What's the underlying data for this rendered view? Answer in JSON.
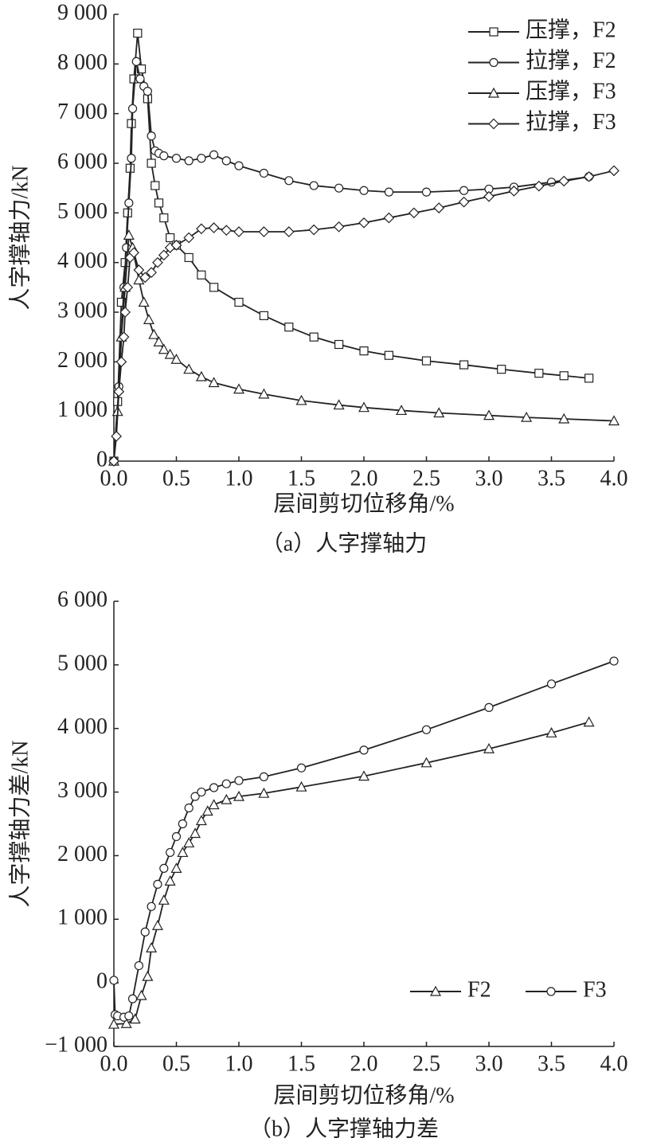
{
  "chart_data": [
    {
      "type": "line",
      "caption": "（a）人字撑轴力",
      "x_label": "层间剪切位移角/%",
      "y_label": "人字撑轴力/kN",
      "xlim": [
        0,
        4
      ],
      "ylim": [
        0,
        9000
      ],
      "xticks": [
        {
          "value": 0,
          "label": "0.0"
        },
        0.5,
        {
          "value": 1,
          "label": "1.0"
        },
        1.5,
        {
          "value": 2,
          "label": "2.0"
        },
        2.5,
        {
          "value": 3,
          "label": "3.0"
        },
        3.5,
        {
          "value": 4,
          "label": "4.0"
        }
      ],
      "yticks": [
        0,
        {
          "value": 1000,
          "label": "1 000"
        },
        {
          "value": 2000,
          "label": "2 000"
        },
        {
          "value": 3000,
          "label": "3 000"
        },
        {
          "value": 4000,
          "label": "4 000"
        },
        {
          "value": 5000,
          "label": "5 000"
        },
        {
          "value": 6000,
          "label": "6 000"
        },
        {
          "value": 7000,
          "label": "7 000"
        },
        {
          "value": 8000,
          "label": "8 000"
        },
        {
          "value": 9000,
          "label": "9 000"
        }
      ],
      "grid": false,
      "legend": "upper right",
      "legend_columns": 1,
      "series": [
        {
          "name": "压撑，F2",
          "color": "#222222",
          "marker": "square",
          "x": [
            0,
            0.03,
            0.06,
            0.09,
            0.11,
            0.13,
            0.14,
            0.16,
            0.19,
            0.22,
            0.27,
            0.3,
            0.33,
            0.36,
            0.4,
            0.45,
            0.5,
            0.6,
            0.7,
            0.8,
            1.0,
            1.2,
            1.4,
            1.6,
            1.8,
            2.0,
            2.2,
            2.5,
            2.8,
            3.1,
            3.4,
            3.6,
            3.8
          ],
          "values": [
            0,
            1200,
            3200,
            4000,
            5000,
            5900,
            6800,
            7700,
            8620,
            7900,
            7300,
            6000,
            5550,
            5200,
            4900,
            4500,
            4350,
            4100,
            3750,
            3500,
            3200,
            2930,
            2700,
            2500,
            2350,
            2220,
            2130,
            2020,
            1940,
            1850,
            1770,
            1720,
            1670
          ]
        },
        {
          "name": "拉撑，F2",
          "color": "#222222",
          "marker": "circle",
          "x": [
            0,
            0.04,
            0.08,
            0.1,
            0.12,
            0.14,
            0.15,
            0.18,
            0.21,
            0.24,
            0.27,
            0.3,
            0.33,
            0.36,
            0.4,
            0.5,
            0.6,
            0.7,
            0.8,
            0.9,
            1.0,
            1.2,
            1.4,
            1.6,
            1.8,
            2.0,
            2.2,
            2.5,
            2.8,
            3.0,
            3.2,
            3.5,
            3.8
          ],
          "values": [
            0,
            1500,
            3500,
            4300,
            5200,
            6100,
            7100,
            8050,
            7700,
            7550,
            7450,
            6550,
            6250,
            6200,
            6150,
            6100,
            6050,
            6100,
            6170,
            6050,
            5950,
            5800,
            5650,
            5550,
            5500,
            5450,
            5420,
            5420,
            5450,
            5480,
            5520,
            5620,
            5730
          ]
        },
        {
          "name": "压撑，F3",
          "color": "#222222",
          "marker": "triangle",
          "x": [
            0,
            0.03,
            0.06,
            0.09,
            0.12,
            0.15,
            0.2,
            0.24,
            0.28,
            0.32,
            0.36,
            0.4,
            0.45,
            0.5,
            0.6,
            0.7,
            0.8,
            1.0,
            1.2,
            1.5,
            1.8,
            2.0,
            2.3,
            2.6,
            3.0,
            3.3,
            3.6,
            4.0
          ],
          "values": [
            0,
            1000,
            2500,
            3500,
            4550,
            4300,
            3650,
            3200,
            2850,
            2550,
            2400,
            2250,
            2150,
            2050,
            1850,
            1700,
            1580,
            1450,
            1350,
            1220,
            1130,
            1080,
            1020,
            970,
            920,
            880,
            850,
            810
          ]
        },
        {
          "name": "拉撑，F3",
          "color": "#222222",
          "marker": "diamond",
          "x": [
            0,
            0.02,
            0.04,
            0.06,
            0.08,
            0.09,
            0.11,
            0.13,
            0.16,
            0.2,
            0.25,
            0.3,
            0.35,
            0.4,
            0.45,
            0.5,
            0.6,
            0.7,
            0.8,
            0.9,
            1.0,
            1.2,
            1.4,
            1.6,
            1.8,
            2.0,
            2.2,
            2.4,
            2.6,
            2.8,
            3.0,
            3.2,
            3.4,
            3.6,
            3.8,
            4.0
          ],
          "values": [
            0,
            500,
            1400,
            2000,
            2500,
            3000,
            3500,
            4100,
            4200,
            3850,
            3700,
            3800,
            4000,
            4150,
            4300,
            4350,
            4500,
            4680,
            4700,
            4650,
            4620,
            4620,
            4620,
            4660,
            4720,
            4800,
            4900,
            5000,
            5100,
            5220,
            5330,
            5440,
            5540,
            5640,
            5730,
            5850
          ]
        }
      ]
    },
    {
      "type": "line",
      "caption": "（b）人字撑轴力差",
      "x_label": "层间剪切位移角/%",
      "y_label": "人字撑轴力差/kN",
      "xlim": [
        0,
        4
      ],
      "ylim": [
        -1000,
        6000
      ],
      "xticks": [
        {
          "value": 0,
          "label": "0.0"
        },
        0.5,
        {
          "value": 1,
          "label": "1.0"
        },
        1.5,
        {
          "value": 2,
          "label": "2.0"
        },
        2.5,
        {
          "value": 3,
          "label": "3.0"
        },
        3.5,
        {
          "value": 4,
          "label": "4.0"
        }
      ],
      "yticks": [
        {
          "value": -1000,
          "label": "−1 000"
        },
        0,
        {
          "value": 1000,
          "label": "1 000"
        },
        {
          "value": 2000,
          "label": "2 000"
        },
        {
          "value": 3000,
          "label": "3 000"
        },
        {
          "value": 4000,
          "label": "4 000"
        },
        {
          "value": 5000,
          "label": "5 000"
        },
        {
          "value": 6000,
          "label": "6 000"
        }
      ],
      "grid": false,
      "legend": "lower right",
      "legend_columns": 2,
      "series": [
        {
          "name": "F2",
          "color": "#222222",
          "marker": "triangle",
          "x": [
            0,
            0.1,
            0.17,
            0.22,
            0.27,
            0.3,
            0.35,
            0.4,
            0.45,
            0.5,
            0.55,
            0.6,
            0.65,
            0.7,
            0.75,
            0.8,
            0.9,
            1.0,
            1.2,
            1.5,
            2.0,
            2.5,
            3.0,
            3.5,
            3.8
          ],
          "values": [
            -650,
            -640,
            -570,
            -200,
            100,
            550,
            900,
            1300,
            1600,
            1800,
            2050,
            2200,
            2350,
            2550,
            2700,
            2800,
            2880,
            2930,
            2980,
            3080,
            3250,
            3460,
            3680,
            3930,
            4100
          ]
        },
        {
          "name": "F3",
          "color": "#222222",
          "marker": "circle",
          "x": [
            0,
            0.01,
            0.03,
            0.08,
            0.12,
            0.15,
            0.2,
            0.25,
            0.3,
            0.35,
            0.4,
            0.45,
            0.5,
            0.55,
            0.6,
            0.65,
            0.7,
            0.8,
            0.9,
            1.0,
            1.2,
            1.5,
            2.0,
            2.5,
            3.0,
            3.5,
            4.0
          ],
          "values": [
            40,
            -500,
            -520,
            -540,
            -520,
            -250,
            270,
            800,
            1200,
            1550,
            1800,
            2050,
            2300,
            2500,
            2750,
            2930,
            3000,
            3070,
            3130,
            3180,
            3240,
            3380,
            3660,
            3980,
            4330,
            4700,
            5060
          ]
        }
      ]
    }
  ]
}
